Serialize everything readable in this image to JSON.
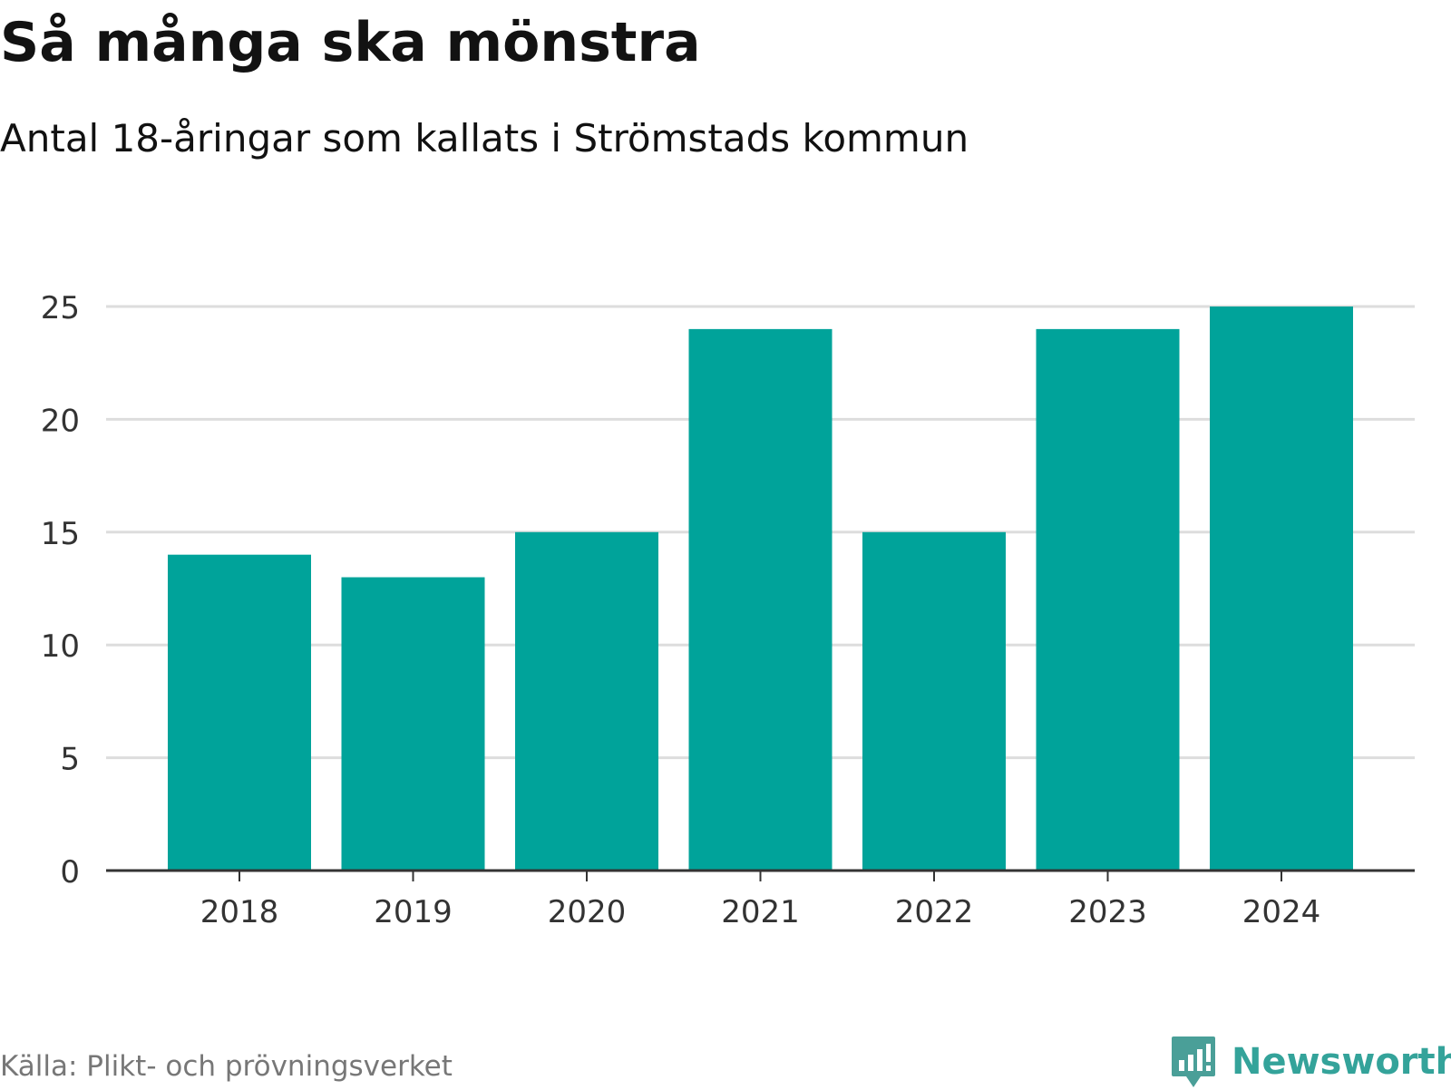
{
  "header": {
    "title": "Så många ska mönstra",
    "subtitle": "Antal 18-åringar som kallats i Strömstads kommun"
  },
  "footer": {
    "source": "Källa: Plikt- och prövningsverket",
    "brand": "Newsworthy",
    "brand_icon": "newsworthy-logo-icon"
  },
  "colors": {
    "bar": "#00a39a",
    "grid": "#dddddd",
    "axis": "#333333",
    "tick_text": "#333333",
    "brand": "#34a39a"
  },
  "chart_data": {
    "type": "bar",
    "title": "Så många ska mönstra",
    "subtitle": "Antal 18-åringar som kallats i Strömstads kommun",
    "xlabel": "",
    "ylabel": "",
    "categories": [
      "2018",
      "2019",
      "2020",
      "2021",
      "2022",
      "2023",
      "2024"
    ],
    "values": [
      14,
      13,
      15,
      24,
      15,
      24,
      25
    ],
    "ylim": [
      0,
      25
    ],
    "yticks": [
      0,
      5,
      10,
      15,
      20,
      25
    ],
    "grid": true,
    "legend": "none"
  }
}
